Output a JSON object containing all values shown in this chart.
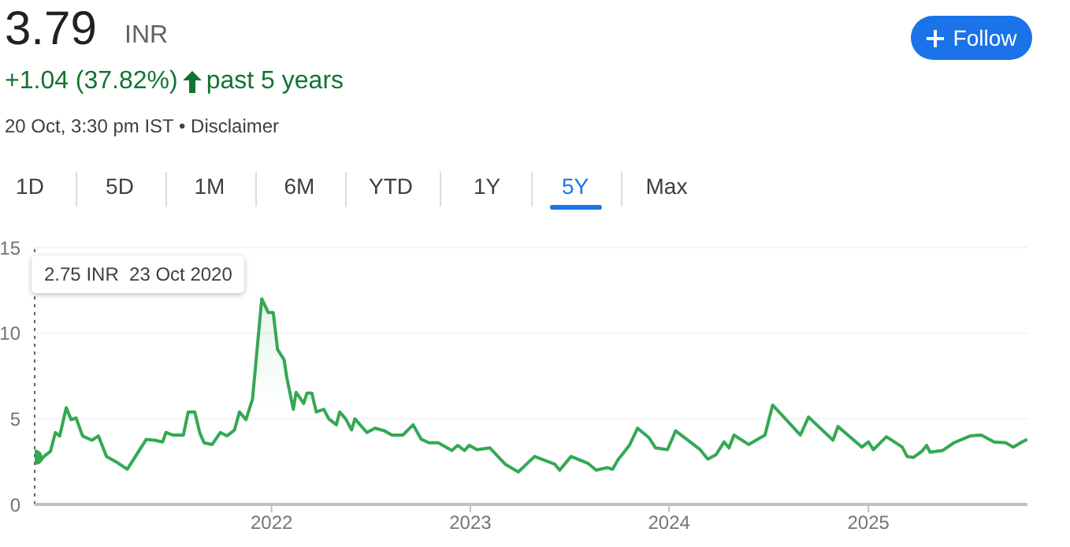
{
  "chart_data": {
    "type": "area",
    "title": "3.79",
    "subtitle": "+1.04 (37.82%)",
    "annotations": [
      "INR",
      "past 5 years",
      "20 Oct, 3:30 pm IST • Disclaimer",
      "Follow",
      "1D",
      "5D",
      "1M",
      "6M",
      "YTD",
      "1Y",
      "5Y",
      "Max",
      "2.75 INR  23 Oct 2020"
    ],
    "series": [
      {
        "color": "#34a853",
        "x": [
          "2020-10-23",
          "2020-10-31",
          "2020-11-09",
          "2020-11-21",
          "2020-11-30",
          "2020-12-08",
          "2020-12-20",
          "2020-12-29",
          "2021-01-07",
          "2021-01-19",
          "2021-02-05",
          "2021-02-17",
          "2021-03-04",
          "2021-03-21",
          "2021-04-11",
          "2021-04-26",
          "2021-05-16",
          "2021-05-31",
          "2021-06-15",
          "2021-06-21",
          "2021-07-03",
          "2021-07-23",
          "2021-08-01",
          "2021-08-13",
          "2021-08-22",
          "2021-08-30",
          "2021-09-14",
          "2021-09-29",
          "2021-10-11",
          "2021-10-25",
          "2021-11-03",
          "2021-11-15",
          "2021-11-27",
          "2021-12-14",
          "2021-12-26",
          "2022-01-04",
          "2022-01-12",
          "2022-01-24",
          "2022-01-29",
          "2022-02-10",
          "2022-02-15",
          "2022-03-01",
          "2022-03-07",
          "2022-03-16",
          "2022-03-24",
          "2022-04-07",
          "2022-04-16",
          "2022-04-30",
          "2022-05-06",
          "2022-05-17",
          "2022-05-28",
          "2022-06-03",
          "2022-06-25",
          "2022-07-10",
          "2022-07-27",
          "2022-08-10",
          "2022-08-30",
          "2022-09-18",
          "2022-10-03",
          "2022-10-17",
          "2022-11-03",
          "2022-11-28",
          "2022-12-09",
          "2022-12-21",
          "2022-12-30",
          "2023-01-13",
          "2023-02-06",
          "2023-03-06",
          "2023-03-30",
          "2023-04-29",
          "2023-06-05",
          "2023-06-14",
          "2023-07-05",
          "2023-08-05",
          "2023-08-20",
          "2023-09-10",
          "2023-09-19",
          "2023-09-29",
          "2023-10-20",
          "2023-11-04",
          "2023-11-25",
          "2023-12-07",
          "2023-12-29",
          "2024-01-13",
          "2024-02-27",
          "2024-03-12",
          "2024-03-27",
          "2024-04-11",
          "2024-04-20",
          "2024-04-29",
          "2024-05-26",
          "2024-06-25",
          "2024-07-09",
          "2024-08-29",
          "2024-09-13",
          "2024-10-28",
          "2024-11-06",
          "2024-12-20",
          "2025-01-01",
          "2025-01-10",
          "2025-02-03",
          "2025-03-04",
          "2025-03-13",
          "2025-03-25",
          "2025-04-09",
          "2025-04-18",
          "2025-04-24",
          "2025-05-17",
          "2025-06-07",
          "2025-06-22",
          "2025-07-07",
          "2025-07-27",
          "2025-08-20",
          "2025-09-10",
          "2025-09-24",
          "2025-10-10",
          "2025-10-20"
        ],
        "values": [
          2.75,
          2.45,
          2.8,
          3.1,
          4.2,
          4.0,
          5.65,
          4.95,
          5.05,
          4.0,
          3.75,
          4.0,
          2.8,
          2.5,
          2.05,
          2.8,
          3.8,
          3.75,
          3.65,
          4.2,
          4.05,
          4.05,
          5.4,
          5.4,
          4.2,
          3.6,
          3.5,
          4.2,
          4.0,
          4.35,
          5.4,
          4.95,
          6.15,
          12.0,
          11.2,
          11.2,
          9.05,
          8.45,
          7.4,
          5.55,
          6.55,
          5.9,
          6.5,
          6.5,
          5.4,
          5.55,
          5.0,
          4.65,
          5.4,
          5.0,
          4.35,
          5.0,
          4.2,
          4.45,
          4.3,
          4.05,
          4.05,
          4.65,
          3.8,
          3.6,
          3.6,
          3.15,
          3.45,
          3.15,
          3.45,
          3.2,
          3.3,
          2.35,
          1.9,
          2.8,
          2.35,
          2.0,
          2.8,
          2.4,
          2.0,
          2.15,
          2.05,
          2.6,
          3.45,
          4.45,
          3.9,
          3.3,
          3.2,
          4.3,
          3.2,
          2.65,
          2.9,
          3.65,
          3.3,
          4.05,
          3.5,
          4.05,
          5.8,
          4.05,
          5.1,
          3.75,
          4.55,
          3.35,
          3.65,
          3.2,
          3.95,
          3.35,
          2.8,
          2.75,
          3.1,
          3.45,
          3.05,
          3.15,
          3.6,
          3.8,
          4.0,
          4.05,
          3.65,
          3.6,
          3.35,
          3.65,
          3.79
        ]
      }
    ],
    "xlim": [
      "2020-10-23",
      "2025-10-20"
    ],
    "xticks": [
      "2022",
      "2023",
      "2024",
      "2025"
    ],
    "ylim": [
      0,
      15
    ],
    "yticks": [
      0,
      5,
      10,
      15
    ],
    "grid": "y",
    "ref_lines": [
      {
        "axis": "x",
        "value": "2020-10-23",
        "color": "#5f6368",
        "line_style": "dotted"
      }
    ]
  }
}
